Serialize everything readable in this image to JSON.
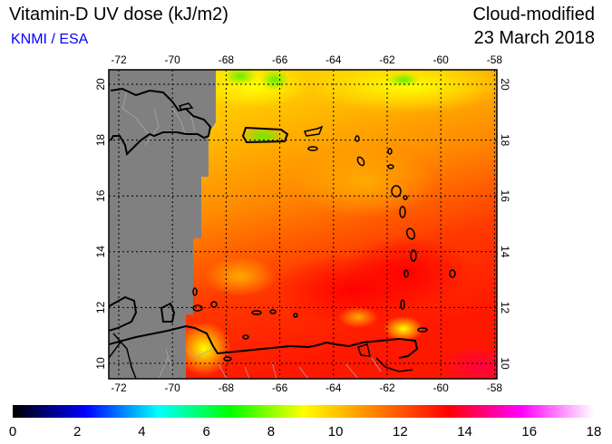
{
  "header": {
    "title": "Vitamin-D UV dose (kJ/m2)",
    "credit": "KNMI / ESA",
    "product": "Cloud-modified",
    "date": "23 March 2018"
  },
  "map": {
    "lon_ticks": [
      -72,
      -70,
      -68,
      -66,
      -64,
      -62,
      -60,
      -58
    ],
    "lat_ticks": [
      10,
      12,
      14,
      16,
      18,
      20
    ],
    "no_data_color": "#808080",
    "coastline_color": "#000000",
    "border_color": "#a0a0a0"
  },
  "colorbar": {
    "ticks": [
      0,
      2,
      4,
      6,
      8,
      10,
      12,
      14,
      16,
      18
    ],
    "range": [
      0,
      18
    ],
    "stops": [
      "#000000",
      "#0000ff",
      "#00ffff",
      "#00ff00",
      "#ffff00",
      "#ff8000",
      "#ff0000",
      "#ff00ff",
      "#ffffff"
    ]
  }
}
